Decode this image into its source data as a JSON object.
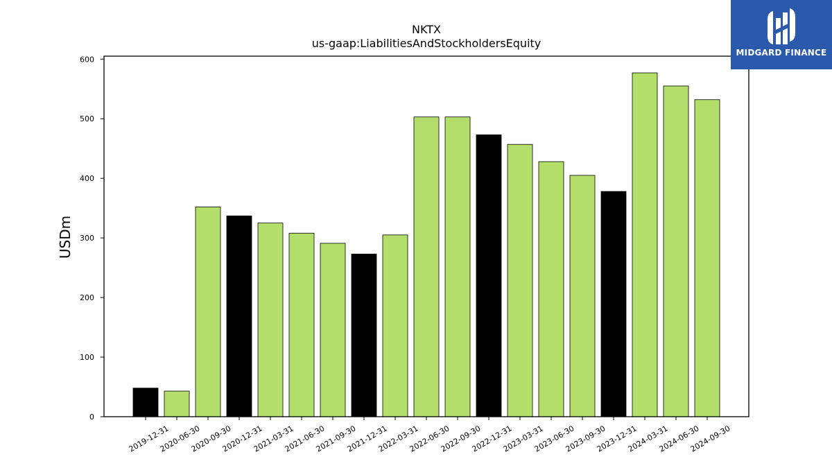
{
  "chart_data": {
    "type": "bar",
    "title": "NKTX",
    "subtitle": "us-gaap:LiabilitiesAndStockholdersEquity",
    "ylabel": "USDm",
    "ylim": [
      0,
      605
    ],
    "yticks": [
      0,
      100,
      200,
      300,
      400,
      500,
      600
    ],
    "grid": false,
    "categories": [
      "2019-12-31",
      "2020-06-30",
      "2020-09-30",
      "2020-12-31",
      "2021-03-31",
      "2021-06-30",
      "2021-09-30",
      "2021-12-31",
      "2022-03-31",
      "2022-06-30",
      "2022-09-30",
      "2022-12-31",
      "2023-03-31",
      "2023-06-30",
      "2023-09-30",
      "2023-12-31",
      "2024-03-31",
      "2024-06-30",
      "2024-09-30"
    ],
    "values": [
      48,
      43,
      352,
      337,
      325,
      308,
      291,
      273,
      305,
      503,
      503,
      473,
      457,
      428,
      405,
      378,
      577,
      555,
      532
    ],
    "bar_kind": [
      "annual",
      "quarterly",
      "quarterly",
      "annual",
      "quarterly",
      "quarterly",
      "quarterly",
      "annual",
      "quarterly",
      "quarterly",
      "quarterly",
      "annual",
      "quarterly",
      "quarterly",
      "quarterly",
      "annual",
      "quarterly",
      "quarterly",
      "quarterly"
    ],
    "colors": {
      "annual": "#000000",
      "quarterly": "#b3de6b",
      "edge": "#000000"
    }
  },
  "brand": {
    "name": "MIDGARD FINANCE",
    "color": "#2b5aad",
    "icon": "midgard-logo-icon"
  }
}
